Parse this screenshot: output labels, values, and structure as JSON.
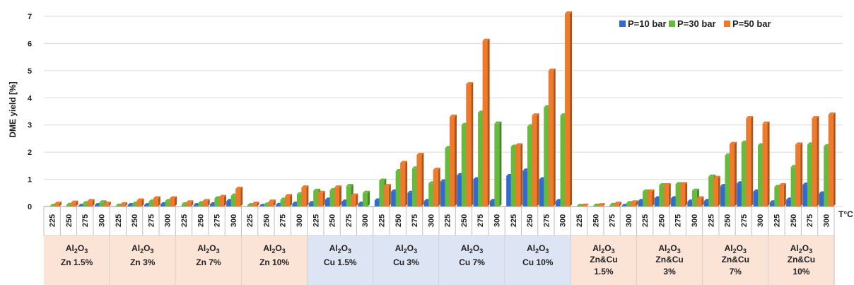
{
  "chart_data": {
    "type": "bar",
    "ylabel": "DME yield [%]",
    "xlabel": "T°C",
    "ylim": [
      0,
      7
    ],
    "yticks": [
      "0",
      "1",
      "2",
      "3",
      "4",
      "5",
      "6",
      "7"
    ],
    "legend_position": "top-right",
    "temperatures": [
      "225",
      "250",
      "275",
      "300"
    ],
    "series": [
      {
        "name": "P=10 bar",
        "color": "#2f6bd1"
      },
      {
        "name": "P=30 bar",
        "color": "#66bb3a"
      },
      {
        "name": "P=50 bar",
        "color": "#f07a2a"
      }
    ],
    "groups": [
      {
        "line1": "Al",
        "sub1": "2",
        "mid": "O",
        "sub2": "3",
        "line2": "Zn 1.5%",
        "line3": "",
        "bg": "#fbe3d6",
        "values": [
          [
            0.0,
            0.02,
            0.1
          ],
          [
            0.0,
            0.06,
            0.14
          ],
          [
            0.02,
            0.12,
            0.2
          ],
          [
            0.05,
            0.15,
            0.1
          ]
        ]
      },
      {
        "line1": "Al",
        "sub1": "2",
        "mid": "O",
        "sub2": "3",
        "line2": "Zn 3%",
        "line3": "",
        "bg": "#fbe3d6",
        "values": [
          [
            0.0,
            0.03,
            0.08
          ],
          [
            0.05,
            0.1,
            0.22
          ],
          [
            0.05,
            0.18,
            0.3
          ],
          [
            0.08,
            0.2,
            0.3
          ]
        ]
      },
      {
        "line1": "Al",
        "sub1": "2",
        "mid": "O",
        "sub2": "3",
        "line2": "Zn 7%",
        "line3": "",
        "bg": "#fbe3d6",
        "values": [
          [
            0.0,
            0.08,
            0.15
          ],
          [
            0.05,
            0.12,
            0.2
          ],
          [
            0.08,
            0.3,
            0.35
          ],
          [
            0.2,
            0.4,
            0.65
          ]
        ]
      },
      {
        "line1": "Al",
        "sub1": "2",
        "mid": "O",
        "sub2": "3",
        "line2": "Zn 10%",
        "line3": "",
        "bg": "#fbe3d6",
        "values": [
          [
            0.0,
            0.05,
            0.1
          ],
          [
            0.02,
            0.07,
            0.18
          ],
          [
            0.06,
            0.25,
            0.38
          ],
          [
            0.1,
            0.45,
            0.7
          ]
        ]
      },
      {
        "line1": "Al",
        "sub1": "2",
        "mid": "O",
        "sub2": "3",
        "line2": "Cu 1.5%",
        "line3": "",
        "bg": "#dde4f3",
        "values": [
          [
            0.12,
            0.58,
            0.5
          ],
          [
            0.25,
            0.6,
            0.7
          ],
          [
            0.18,
            0.75,
            0.4
          ],
          [
            0.1,
            0.5,
            0.0
          ]
        ]
      },
      {
        "line1": "Al",
        "sub1": "2",
        "mid": "O",
        "sub2": "3",
        "line2": "Cu 3%",
        "line3": "",
        "bg": "#dde4f3",
        "values": [
          [
            0.22,
            0.95,
            0.75
          ],
          [
            0.55,
            1.3,
            1.6
          ],
          [
            0.5,
            1.4,
            1.9
          ],
          [
            0.2,
            0.85,
            1.35
          ]
        ]
      },
      {
        "line1": "Al",
        "sub1": "2",
        "mid": "O",
        "sub2": "3",
        "line2": "Cu 7%",
        "line3": "",
        "bg": "#dde4f3",
        "values": [
          [
            0.92,
            2.15,
            3.3
          ],
          [
            1.15,
            3.0,
            4.5
          ],
          [
            1.0,
            3.45,
            6.1
          ],
          [
            0.2,
            3.05,
            0.0
          ]
        ]
      },
      {
        "line1": "Al",
        "sub1": "2",
        "mid": "O",
        "sub2": "3",
        "line2": "Cu 10%",
        "line3": "",
        "bg": "#dde4f3",
        "values": [
          [
            1.12,
            2.2,
            2.25
          ],
          [
            1.32,
            2.95,
            3.35
          ],
          [
            1.0,
            3.65,
            5.0
          ],
          [
            0.2,
            3.35,
            7.1
          ]
        ]
      },
      {
        "line1": "Al",
        "sub1": "2",
        "mid": "O",
        "sub2": "3",
        "line2": "Zn&Cu",
        "line3": "1.5%",
        "bg": "#fbe3d6",
        "values": [
          [
            0.0,
            0.02,
            0.03
          ],
          [
            0.0,
            0.03,
            0.05
          ],
          [
            0.0,
            0.06,
            0.1
          ],
          [
            0.02,
            0.12,
            0.15
          ]
        ]
      },
      {
        "line1": "Al",
        "sub1": "2",
        "mid": "O",
        "sub2": "3",
        "line2": "Zn&Cu",
        "line3": "3%",
        "bg": "#fbe3d6",
        "values": [
          [
            0.2,
            0.55,
            0.55
          ],
          [
            0.3,
            0.78,
            0.78
          ],
          [
            0.3,
            0.82,
            0.82
          ],
          [
            0.18,
            0.58,
            0.3
          ]
        ]
      },
      {
        "line1": "Al",
        "sub1": "2",
        "mid": "O",
        "sub2": "3",
        "line2": "Zn&Cu",
        "line3": "7%",
        "bg": "#fbe3d6",
        "values": [
          [
            0.2,
            1.1,
            1.05
          ],
          [
            0.75,
            1.88,
            2.3
          ],
          [
            0.85,
            2.35,
            3.25
          ],
          [
            0.55,
            2.25,
            3.05
          ]
        ]
      },
      {
        "line1": "Al",
        "sub1": "2",
        "mid": "O",
        "sub2": "3",
        "line2": "Zn&Cu",
        "line3": "10%",
        "bg": "#fbe3d6",
        "values": [
          [
            0.15,
            0.72,
            0.78
          ],
          [
            0.25,
            1.45,
            2.28
          ],
          [
            0.8,
            2.28,
            3.25
          ],
          [
            0.48,
            2.22,
            3.38
          ]
        ]
      }
    ]
  }
}
